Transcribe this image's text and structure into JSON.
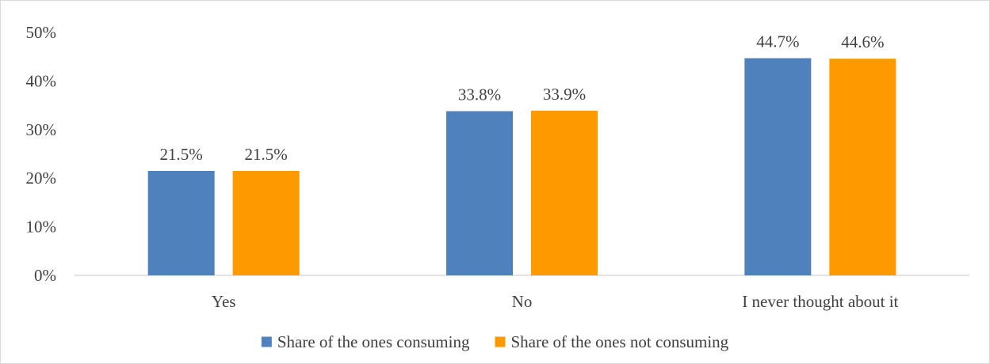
{
  "chart_data": {
    "type": "bar",
    "categories": [
      "Yes",
      "No",
      "I never thought about it"
    ],
    "series": [
      {
        "name": "Share of the ones consuming",
        "values": [
          21.5,
          33.8,
          44.7
        ],
        "color": "#4f81bd"
      },
      {
        "name": "Share of the ones not consuming",
        "values": [
          21.5,
          33.9,
          44.6
        ],
        "color": "#ff9900"
      }
    ],
    "data_labels": [
      [
        "21.5%",
        "33.8%",
        "44.7%"
      ],
      [
        "21.5%",
        "33.9%",
        "44.6%"
      ]
    ],
    "yticks": [
      "0%",
      "10%",
      "20%",
      "30%",
      "40%",
      "50%"
    ],
    "ylim": [
      0,
      50
    ],
    "grid": false,
    "legend_position": "bottom",
    "title": "",
    "xlabel": "",
    "ylabel": ""
  }
}
